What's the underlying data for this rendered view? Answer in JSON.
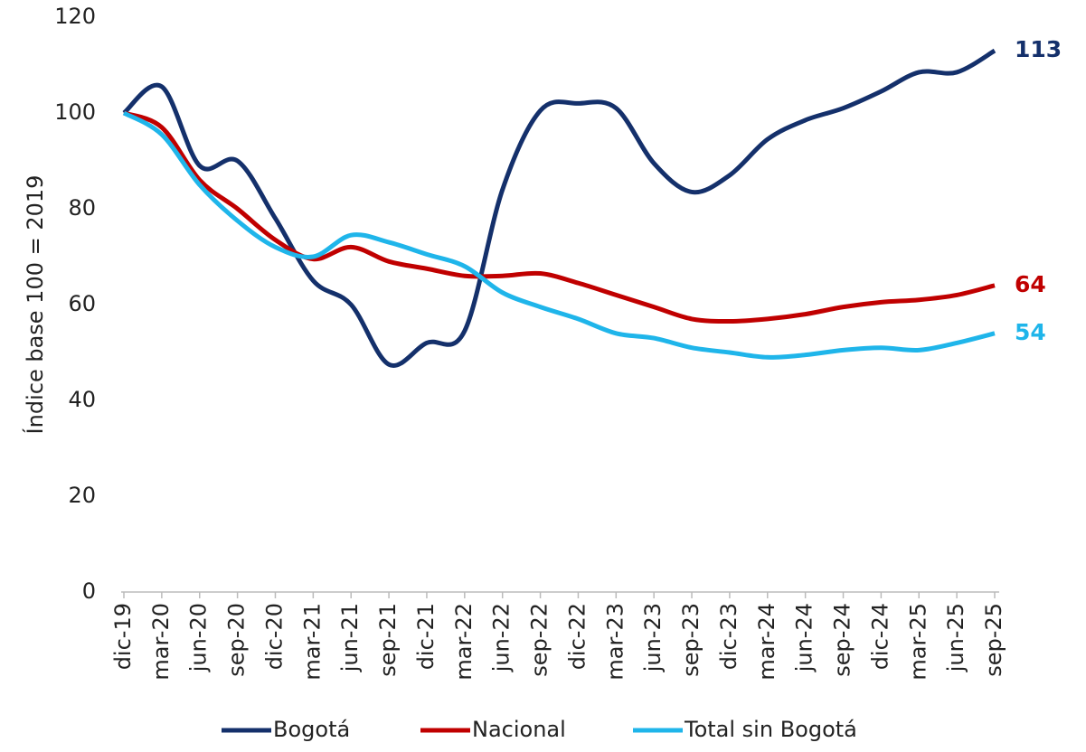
{
  "chart_data": {
    "type": "line",
    "y_label": "Índice base 100 = 2019",
    "categories": [
      "dic-19",
      "mar-20",
      "jun-20",
      "sep-20",
      "dic-20",
      "mar-21",
      "jun-21",
      "sep-21",
      "dic-21",
      "mar-22",
      "jun-22",
      "sep-22",
      "dic-22",
      "mar-23",
      "jun-23",
      "sep-23",
      "dic-23",
      "mar-24",
      "jun-24",
      "sep-24",
      "dic-24",
      "mar-25",
      "jun-25",
      "sep-25"
    ],
    "series": [
      {
        "name": "Bogotá",
        "color": "#14306b",
        "values": [
          100,
          105.5,
          89,
          90,
          78,
          65,
          60,
          47.5,
          52,
          54.5,
          84,
          100.5,
          102,
          101,
          89.5,
          83.5,
          87,
          94.5,
          98.5,
          101,
          104.5,
          108.5,
          108.5,
          113
        ]
      },
      {
        "name": "Nacional",
        "color": "#c00000",
        "values": [
          100,
          97,
          86,
          80,
          73.5,
          69.5,
          72,
          69,
          67.5,
          66,
          66,
          66.5,
          64.5,
          62,
          59.5,
          57,
          56.5,
          57,
          58,
          59.5,
          60.5,
          61,
          62,
          64
        ]
      },
      {
        "name": "Total sin Bogotá",
        "color": "#1fb5ea",
        "values": [
          100,
          95.5,
          85,
          77.5,
          72,
          70,
          74.5,
          73,
          70.5,
          68,
          62.5,
          59.5,
          57,
          54,
          53,
          51,
          50,
          49,
          49.5,
          50.5,
          51,
          50.5,
          52,
          54
        ]
      }
    ],
    "ylim": [
      0,
      120
    ],
    "yticks": [
      0,
      20,
      40,
      60,
      80,
      100,
      120
    ],
    "grid": false,
    "legend": "bottom"
  }
}
